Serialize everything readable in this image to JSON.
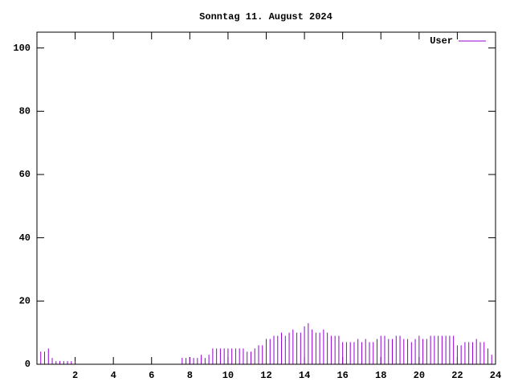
{
  "chart_data": {
    "type": "impulse",
    "title": "Sonntag 11. August 2024",
    "x": [
      0,
      0.2,
      0.4,
      0.6,
      0.8,
      1,
      1.2,
      1.4,
      1.6,
      1.8,
      2,
      2.2,
      2.4,
      2.6,
      2.8,
      3,
      3.2,
      3.4,
      3.6,
      3.8,
      4,
      4.2,
      4.4,
      4.6,
      4.8,
      5,
      5.2,
      5.4,
      5.6,
      5.8,
      6,
      6.2,
      6.4,
      6.6,
      6.8,
      7,
      7.2,
      7.4,
      7.6,
      7.8,
      8,
      8.2,
      8.4,
      8.6,
      8.8,
      9,
      9.2,
      9.4,
      9.6,
      9.8,
      10,
      10.2,
      10.4,
      10.6,
      10.8,
      11,
      11.2,
      11.4,
      11.6,
      11.8,
      12,
      12.2,
      12.4,
      12.6,
      12.8,
      13,
      13.2,
      13.4,
      13.6,
      13.8,
      14,
      14.2,
      14.4,
      14.6,
      14.8,
      15,
      15.2,
      15.4,
      15.6,
      15.8,
      16,
      16.2,
      16.4,
      16.6,
      16.8,
      17,
      17.2,
      17.4,
      17.6,
      17.8,
      18,
      18.2,
      18.4,
      18.6,
      18.8,
      19,
      19.2,
      19.4,
      19.6,
      19.8,
      20,
      20.2,
      20.4,
      20.6,
      20.8,
      21,
      21.2,
      21.4,
      21.6,
      21.8,
      22,
      22.2,
      22.4,
      22.6,
      22.8,
      23,
      23.2,
      23.4,
      23.6,
      23.8
    ],
    "series": [
      {
        "name": "User",
        "color": "#9400d3",
        "values": [
          5,
          4,
          4,
          5,
          2,
          1,
          1,
          1,
          1,
          1,
          1,
          null,
          null,
          null,
          null,
          null,
          null,
          null,
          null,
          null,
          null,
          null,
          null,
          null,
          null,
          null,
          null,
          null,
          null,
          null,
          null,
          null,
          null,
          null,
          null,
          null,
          null,
          null,
          2,
          2,
          2,
          2,
          2,
          3,
          2,
          3,
          5,
          5,
          5,
          5,
          5,
          5,
          5,
          5,
          5,
          4,
          4,
          5,
          6,
          6,
          8,
          8,
          9,
          9,
          10,
          9,
          10,
          11,
          10,
          10,
          12,
          13,
          11,
          10,
          10,
          11,
          10,
          9,
          9,
          9,
          7,
          7,
          7,
          7,
          8,
          7,
          8,
          7,
          7,
          8,
          9,
          9,
          8,
          8,
          9,
          9,
          8,
          8,
          7,
          8,
          9,
          8,
          8,
          9,
          9,
          9,
          9,
          9,
          9,
          9,
          6,
          6,
          7,
          7,
          7,
          8,
          7,
          7,
          5,
          3
        ]
      }
    ],
    "xlim": [
      0,
      24
    ],
    "xticks": [
      2,
      4,
      6,
      8,
      10,
      12,
      14,
      16,
      18,
      20,
      22,
      24
    ],
    "ylim": [
      0,
      105
    ],
    "yticks": [
      0,
      20,
      40,
      60,
      80,
      100
    ],
    "legend": "top-right"
  }
}
